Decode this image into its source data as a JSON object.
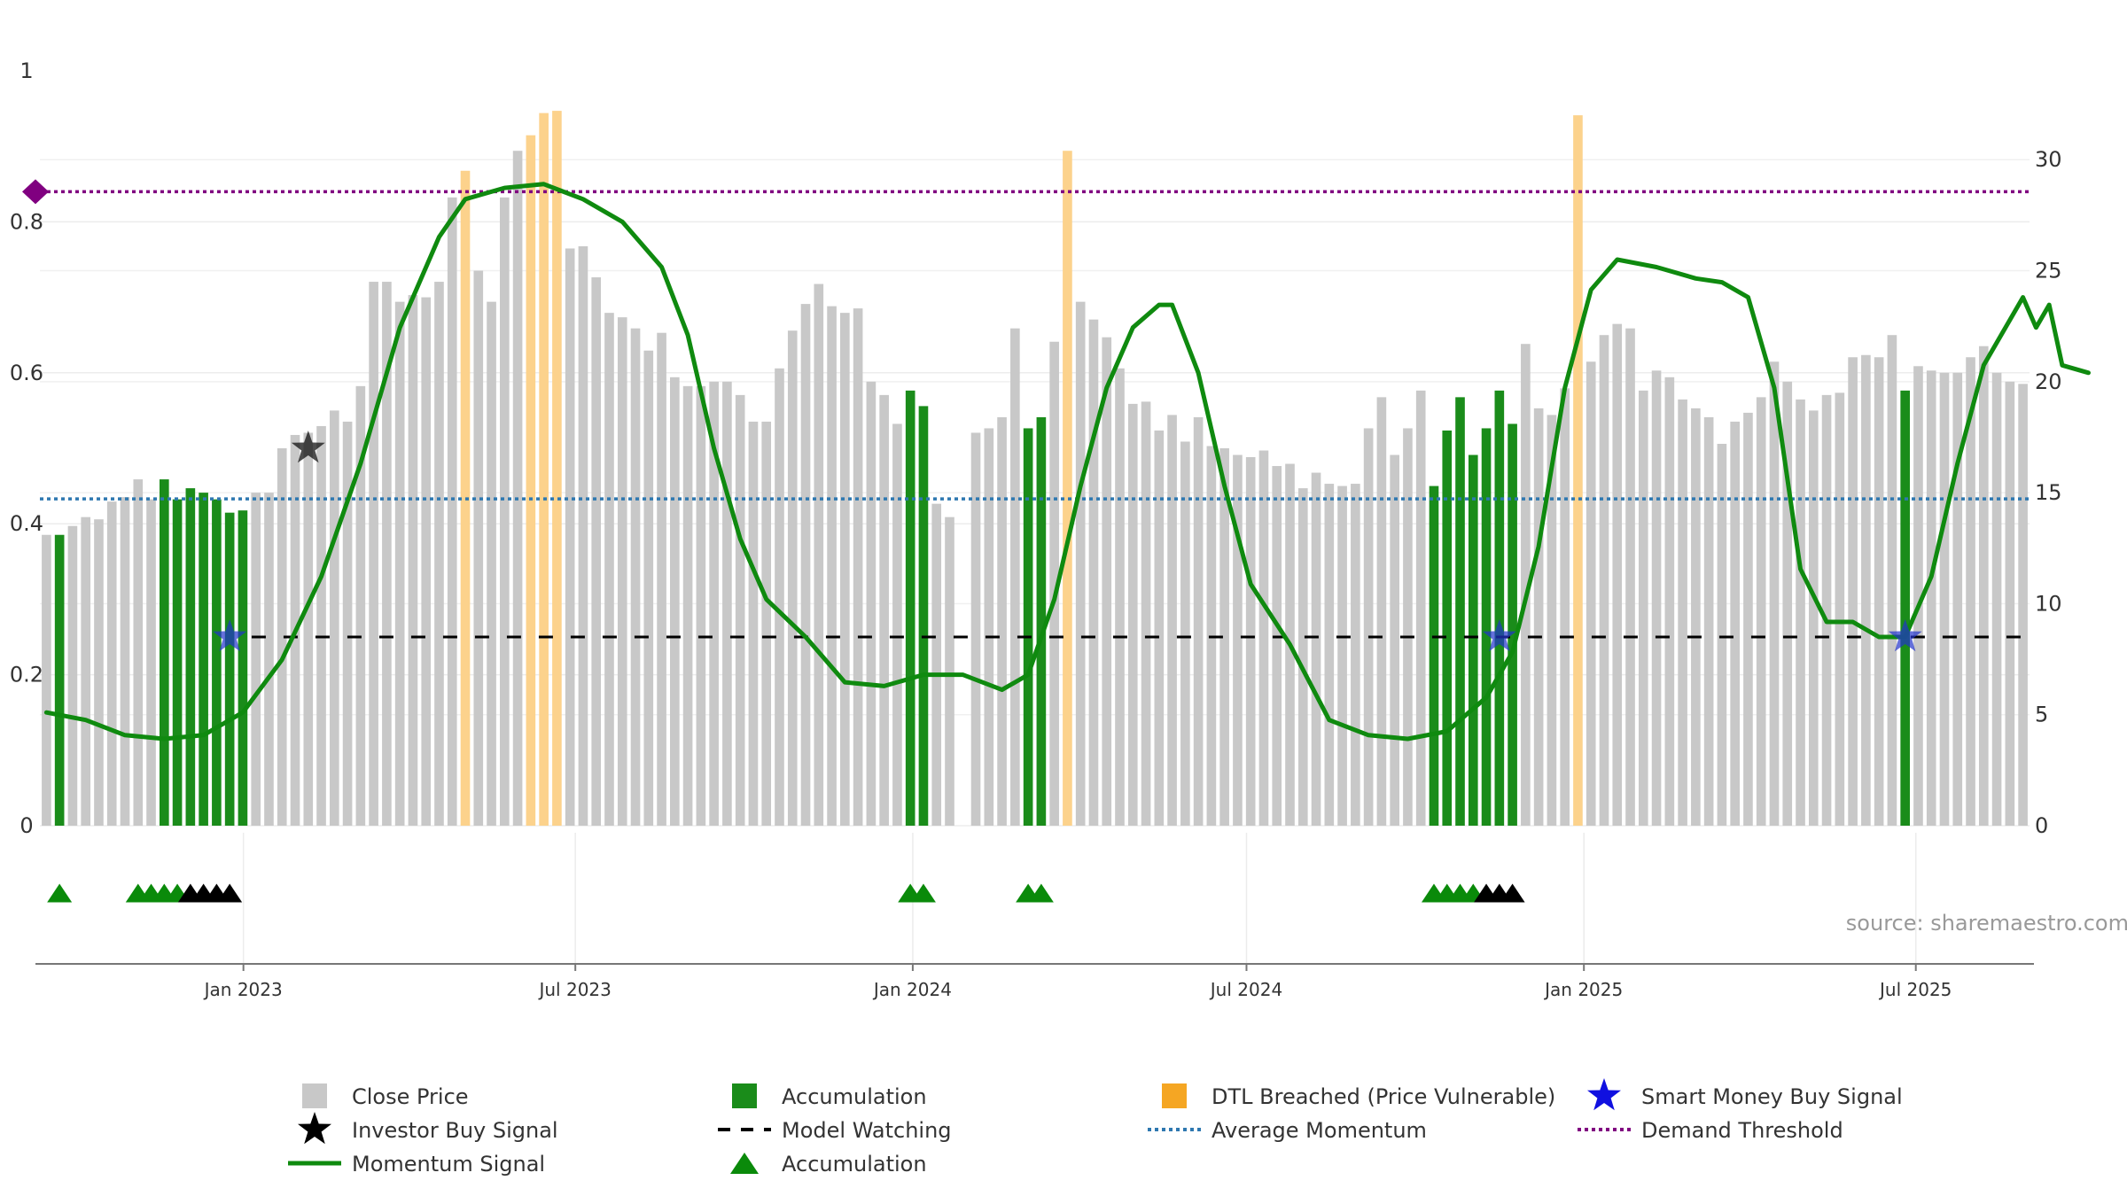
{
  "chart_data": {
    "type": "bar",
    "title": "",
    "source": "source: sharemaestro.com",
    "left_axis": {
      "min": 0,
      "max": 1,
      "ticks": [
        0,
        0.2,
        0.4,
        0.6,
        0.8
      ],
      "tick_labels": [
        "0",
        "0.2",
        "0.4",
        "0.6",
        "0.8"
      ],
      "top_label": "1"
    },
    "right_axis": {
      "min": 0,
      "max": 34,
      "ticks": [
        0,
        5,
        10,
        15,
        20,
        25,
        30
      ],
      "tick_labels": [
        "0",
        "5",
        "10",
        "15",
        "20",
        "25",
        "30"
      ]
    },
    "x_axis": {
      "start": "2022-09-12",
      "end": "2025-09-01",
      "tick_labels": [
        "Jan 2023",
        "Jul 2023",
        "Jan 2024",
        "Jul 2024",
        "Jan 2025",
        "Jul 2025"
      ],
      "tick_dates": [
        "2023-01-01",
        "2023-07-01",
        "2024-01-01",
        "2024-07-01",
        "2025-01-01",
        "2025-07-01"
      ]
    },
    "gridlines": true,
    "close_price": [
      13.1,
      13.1,
      13.5,
      13.9,
      13.8,
      14.6,
      14.8,
      15.6,
      14.7,
      15.2,
      15.0,
      14.7,
      14.1,
      14.2,
      14.7,
      14.8,
      15.0,
      15.0,
      17.0,
      17.6,
      17.7,
      18.0,
      18.7,
      18.2,
      19.8,
      24.5,
      24.5,
      23.6,
      23.9,
      23.8,
      24.5,
      28.3,
      29.3,
      25.0,
      23.6,
      28.3,
      30.4,
      30.5,
      29.1,
      27.2,
      26.0,
      26.1,
      24.7,
      23.1,
      22.9,
      22.4,
      21.4,
      22.2,
      20.2,
      19.8,
      19.8,
      20.0,
      20.0,
      19.4,
      18.2,
      18.2,
      20.6,
      22.3,
      23.5,
      24.4,
      23.4,
      23.1,
      23.3,
      20.0,
      19.4,
      18.1,
      17.4,
      17.2,
      14.5,
      13.9,
      0.0,
      17.7,
      17.9,
      18.4,
      22.4,
      26.5,
      23.3,
      21.8,
      22.3,
      23.6,
      22.8,
      22.0,
      20.6,
      19.0,
      19.1,
      17.8,
      18.5,
      17.3,
      18.4,
      17.1,
      17.0,
      16.7,
      16.6,
      16.9,
      16.2,
      16.3,
      15.2,
      15.9,
      15.4,
      15.3,
      15.4,
      17.9,
      19.3,
      16.7,
      17.9,
      19.6,
      18.1,
      19.7,
      20.0,
      20.3,
      21.9,
      22.5,
      24.9,
      21.7,
      18.8,
      18.5,
      19.7,
      20.5,
      20.9,
      22.1,
      22.6,
      22.4,
      19.6,
      20.5,
      20.2,
      19.2,
      18.8,
      18.4,
      17.2,
      18.2,
      18.6,
      19.3,
      20.9,
      20.0,
      19.2,
      18.7,
      19.4,
      19.5,
      21.1,
      21.2,
      21.1,
      22.1,
      21.8,
      20.7,
      20.5,
      20.4,
      20.4,
      21.1,
      21.6,
      20.4,
      20.0,
      19.9
    ],
    "accumulation_bars": [
      1,
      9,
      10,
      11,
      12,
      13,
      14,
      15,
      66,
      67,
      75,
      76,
      106,
      107,
      108,
      109,
      110,
      111,
      112,
      142
    ],
    "accumulation_values": [
      13.1,
      15.6,
      14.7,
      15.2,
      15.0,
      14.7,
      14.1,
      14.2,
      19.6,
      18.9,
      17.9,
      18.4,
      15.3,
      17.8,
      19.3,
      16.7,
      17.9,
      19.6,
      18.1,
      19.6
    ],
    "dtl_breached_bars": [
      32,
      37,
      38,
      39,
      78,
      117
    ],
    "dtl_breached_values": [
      29.5,
      31.1,
      32.1,
      32.2,
      30.4,
      32.0
    ],
    "momentum_signal": [
      [
        0,
        0.15
      ],
      [
        3,
        0.14
      ],
      [
        6,
        0.12
      ],
      [
        9,
        0.115
      ],
      [
        12,
        0.12
      ],
      [
        15,
        0.15
      ],
      [
        18,
        0.22
      ],
      [
        21,
        0.33
      ],
      [
        24,
        0.48
      ],
      [
        27,
        0.66
      ],
      [
        30,
        0.78
      ],
      [
        32,
        0.83
      ],
      [
        35,
        0.845
      ],
      [
        38,
        0.85
      ],
      [
        41,
        0.83
      ],
      [
        44,
        0.8
      ],
      [
        47,
        0.74
      ],
      [
        49,
        0.65
      ],
      [
        51,
        0.5
      ],
      [
        53,
        0.38
      ],
      [
        55,
        0.3
      ],
      [
        58,
        0.25
      ],
      [
        61,
        0.19
      ],
      [
        64,
        0.185
      ],
      [
        67,
        0.2
      ],
      [
        70,
        0.2
      ],
      [
        73,
        0.18
      ],
      [
        75,
        0.2
      ],
      [
        77,
        0.3
      ],
      [
        79,
        0.45
      ],
      [
        81,
        0.58
      ],
      [
        83,
        0.66
      ],
      [
        85,
        0.69
      ],
      [
        86,
        0.69
      ],
      [
        88,
        0.6
      ],
      [
        90,
        0.45
      ],
      [
        92,
        0.32
      ],
      [
        95,
        0.24
      ],
      [
        98,
        0.14
      ],
      [
        101,
        0.12
      ],
      [
        104,
        0.115
      ],
      [
        107,
        0.125
      ],
      [
        110,
        0.17
      ],
      [
        112,
        0.23
      ],
      [
        114,
        0.37
      ],
      [
        116,
        0.58
      ],
      [
        118,
        0.71
      ],
      [
        120,
        0.75
      ],
      [
        123,
        0.74
      ],
      [
        126,
        0.725
      ],
      [
        128,
        0.72
      ],
      [
        130,
        0.7
      ],
      [
        132,
        0.58
      ],
      [
        134,
        0.34
      ],
      [
        136,
        0.27
      ],
      [
        138,
        0.27
      ],
      [
        140,
        0.25
      ],
      [
        142,
        0.25
      ],
      [
        144,
        0.33
      ],
      [
        146,
        0.48
      ],
      [
        148,
        0.61
      ],
      [
        150,
        0.67
      ],
      [
        151,
        0.7
      ],
      [
        152,
        0.66
      ],
      [
        153,
        0.69
      ],
      [
        154,
        0.61
      ],
      [
        156,
        0.6
      ]
    ],
    "average_momentum": 0.433,
    "demand_threshold": 0.84,
    "model_watching": 0.25,
    "investor_buy_signal": {
      "bar": 20,
      "y": 0.5
    },
    "smart_money_buy_signals": [
      {
        "bar": 14,
        "y": 0.25
      },
      {
        "bar": 111,
        "y": 0.25
      },
      {
        "bar": 142,
        "y": 0.25
      }
    ],
    "accumulation_triangles": [
      1,
      7,
      8,
      9,
      10,
      66,
      67,
      75,
      76,
      106,
      107,
      108,
      109
    ],
    "black_triangles": [
      11,
      12,
      13,
      14,
      110,
      111,
      112
    ],
    "colors": {
      "close_price": "#c8c8c8",
      "accumulation": "#1a8c1a",
      "dtl_breached": "#fcd28c",
      "momentum": "#0f8a0f",
      "average_momentum": "#2e78b0",
      "demand_threshold": "#800080",
      "model_watching": "#000000",
      "smart_money": "#2233cc",
      "investor_buy": "#111111",
      "triangle_green": "#0a8a0a",
      "triangle_black": "#000000"
    },
    "legend": [
      {
        "label": "Close Price",
        "kind": "square",
        "color": "#c8c8c8"
      },
      {
        "label": "Accumulation",
        "kind": "square",
        "color": "#1a8c1a"
      },
      {
        "label": "DTL Breached (Price Vulnerable)",
        "kind": "square",
        "color": "#f5a623"
      },
      {
        "label": "Smart Money Buy Signal",
        "kind": "star",
        "color": "#1010e0"
      },
      {
        "label": "Investor Buy Signal",
        "kind": "star",
        "color": "#000000"
      },
      {
        "label": "Model Watching",
        "kind": "dash",
        "color": "#000000"
      },
      {
        "label": "Average Momentum",
        "kind": "dot",
        "color": "#2e78b0"
      },
      {
        "label": "Demand Threshold",
        "kind": "dot",
        "color": "#800080"
      },
      {
        "label": "Momentum Signal",
        "kind": "line",
        "color": "#0f8a0f"
      },
      {
        "label": "Accumulation",
        "kind": "triangle",
        "color": "#0a8a0a"
      }
    ]
  }
}
